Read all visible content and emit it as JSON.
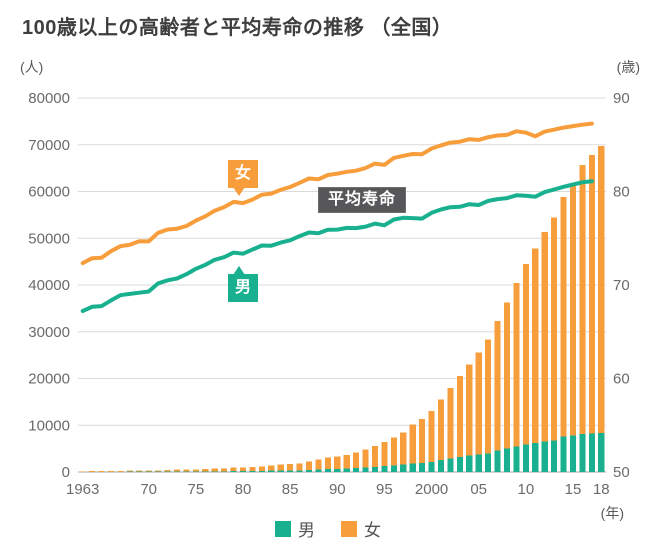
{
  "header": {
    "title": "100歳以上の高齢者と平均寿命の推移 （全国）"
  },
  "axes_units": {
    "left": "(人)",
    "right": "(歳)",
    "x": "(年)"
  },
  "callouts": {
    "women": "女",
    "men": "男",
    "life_expectancy": "平均寿命"
  },
  "legend": {
    "items": [
      {
        "key": "men",
        "label": "男"
      },
      {
        "key": "women",
        "label": "女"
      }
    ]
  },
  "colors": {
    "men": "#18b08f",
    "women": "#f79d3c",
    "annotation": "#57575a",
    "grid": "#dbdbdb",
    "baseline": "#a6a6a6",
    "axis_text": "#6b6b6b",
    "unit_text": "#595959",
    "title": "#3e3e3e",
    "legend_text": "#555555"
  },
  "chart_data": {
    "type": "combo: stacked bar (centenarian counts) + line (life expectancy)",
    "title": "100歳以上の高齢者と平均寿命の推移（全国）",
    "grid": true,
    "years": [
      1963,
      1964,
      1965,
      1966,
      1967,
      1968,
      1969,
      1970,
      1971,
      1972,
      1973,
      1974,
      1975,
      1976,
      1977,
      1978,
      1979,
      1980,
      1981,
      1982,
      1983,
      1984,
      1985,
      1986,
      1987,
      1988,
      1989,
      1990,
      1991,
      1992,
      1993,
      1994,
      1995,
      1996,
      1997,
      1998,
      1999,
      2000,
      2001,
      2002,
      2003,
      2004,
      2005,
      2006,
      2007,
      2008,
      2009,
      2010,
      2011,
      2012,
      2013,
      2014,
      2015,
      2016,
      2017,
      2018
    ],
    "left_axis": {
      "label": "(人)",
      "min": 0,
      "max": 80000,
      "tick_step": 10000
    },
    "right_axis": {
      "label": "(歳)",
      "min": 50,
      "max": 90,
      "tick_step": 10
    },
    "x_ticks": [
      {
        "index": 0,
        "label": "1963"
      },
      {
        "index": 7,
        "label": "70"
      },
      {
        "index": 12,
        "label": "75"
      },
      {
        "index": 17,
        "label": "80"
      },
      {
        "index": 22,
        "label": "85"
      },
      {
        "index": 27,
        "label": "90"
      },
      {
        "index": 32,
        "label": "95"
      },
      {
        "index": 37,
        "label": "2000"
      },
      {
        "index": 42,
        "label": "05"
      },
      {
        "index": 47,
        "label": "10"
      },
      {
        "index": 52,
        "label": "15"
      },
      {
        "index": 55,
        "label": "18"
      }
    ],
    "bar_series": [
      {
        "name": "男",
        "axis": "left",
        "color_key": "men",
        "values": [
          20,
          31,
          36,
          46,
          52,
          67,
          70,
          62,
          70,
          78,
          91,
          96,
          102,
          113,
          122,
          132,
          161,
          174,
          202,
          233,
          269,
          347,
          359,
          361,
          462,
          562,
          630,
          680,
          749,
          822,
          943,
          1093,
          1255,
          1400,
          1570,
          1812,
          1973,
          2158,
          2541,
          2875,
          3159,
          3523,
          3779,
          3961,
          4613,
          5063,
          5447,
          5869,
          6162,
          6534,
          6791,
          7586,
          7840,
          8167,
          8197,
          8331
        ]
      },
      {
        "name": "女",
        "axis": "left",
        "color_key": "women",
        "values": [
          133,
          160,
          162,
          206,
          201,
          260,
          261,
          248,
          269,
          327,
          404,
          431,
          446,
          553,
          575,
          660,
          776,
          794,
          870,
          967,
          1085,
          1216,
          1381,
          1490,
          1809,
          2106,
          2448,
          2618,
          2876,
          3330,
          3859,
          4500,
          5123,
          5973,
          6921,
          8346,
          9373,
          10878,
          12934,
          15059,
          17402,
          19515,
          21775,
          24434,
          27682,
          31213,
          34952,
          38580,
          41594,
          44842,
          47606,
          51234,
          53728,
          57525,
          59627,
          61454
        ]
      }
    ],
    "line_series": [
      {
        "name": "平均寿命（男）",
        "axis": "right",
        "color_key": "men",
        "start_year": 1963,
        "end_year": 2017,
        "values": [
          67.21,
          67.67,
          67.74,
          68.35,
          68.91,
          69.05,
          69.18,
          69.31,
          70.17,
          70.5,
          70.7,
          71.16,
          71.73,
          72.15,
          72.69,
          72.97,
          73.46,
          73.35,
          73.79,
          74.22,
          74.2,
          74.54,
          74.78,
          75.23,
          75.61,
          75.54,
          75.91,
          75.92,
          76.11,
          76.09,
          76.25,
          76.57,
          76.38,
          77.01,
          77.19,
          77.16,
          77.1,
          77.72,
          78.07,
          78.32,
          78.36,
          78.64,
          78.56,
          79.0,
          79.19,
          79.29,
          79.59,
          79.55,
          79.44,
          79.94,
          80.21,
          80.5,
          80.75,
          80.98,
          81.09
        ]
      },
      {
        "name": "平均寿命（女）",
        "axis": "right",
        "color_key": "women",
        "start_year": 1963,
        "end_year": 2017,
        "values": [
          72.34,
          72.87,
          72.92,
          73.61,
          74.15,
          74.3,
          74.67,
          74.66,
          75.58,
          75.94,
          76.02,
          76.31,
          76.89,
          77.35,
          77.95,
          78.33,
          78.89,
          78.76,
          79.13,
          79.66,
          79.78,
          80.18,
          80.48,
          80.93,
          81.39,
          81.3,
          81.77,
          81.9,
          82.11,
          82.22,
          82.51,
          82.98,
          82.85,
          83.59,
          83.82,
          84.01,
          83.99,
          84.6,
          84.93,
          85.23,
          85.33,
          85.59,
          85.52,
          85.81,
          85.99,
          86.05,
          86.44,
          86.3,
          85.9,
          86.41,
          86.61,
          86.83,
          86.99,
          87.14,
          87.26
        ]
      }
    ]
  }
}
